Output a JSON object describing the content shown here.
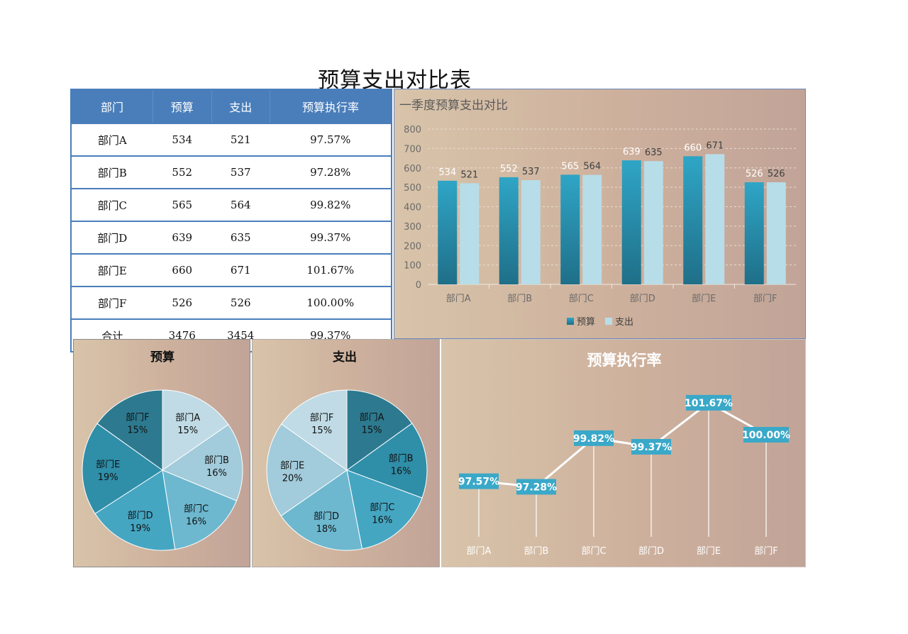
{
  "page_title": "预算支出对比表",
  "table": {
    "headers": [
      "部门",
      "预算",
      "支出",
      "预算执行率"
    ],
    "rows": [
      [
        "部门A",
        "534",
        "521",
        "97.57%"
      ],
      [
        "部门B",
        "552",
        "537",
        "97.28%"
      ],
      [
        "部门C",
        "565",
        "564",
        "99.82%"
      ],
      [
        "部门D",
        "639",
        "635",
        "99.37%"
      ],
      [
        "部门E",
        "660",
        "671",
        "101.67%"
      ],
      [
        "部门F",
        "526",
        "526",
        "100.00%"
      ],
      [
        "合计",
        "3476",
        "3454",
        "99.37%"
      ]
    ]
  },
  "chart_data": [
    {
      "type": "bar",
      "title": "一季度预算支出对比",
      "categories": [
        "部门A",
        "部门B",
        "部门C",
        "部门D",
        "部门E",
        "部门F"
      ],
      "series": [
        {
          "name": "预算",
          "values": [
            534,
            552,
            565,
            639,
            660,
            526
          ],
          "color": "#2a8fae"
        },
        {
          "name": "支出",
          "values": [
            521,
            537,
            564,
            635,
            671,
            526
          ],
          "color": "#b7dde8"
        }
      ],
      "ylim": [
        0,
        800
      ],
      "yticks": [
        0,
        100,
        200,
        300,
        400,
        500,
        600,
        700,
        800
      ],
      "grid": true,
      "legend": "bottom"
    },
    {
      "type": "pie",
      "title": "预算",
      "labels": [
        "部门A",
        "部门B",
        "部门C",
        "部门D",
        "部门E",
        "部门F"
      ],
      "values": [
        534,
        552,
        565,
        639,
        660,
        526
      ],
      "percent_labels": [
        "15%",
        "16%",
        "16%",
        "19%",
        "19%",
        "15%"
      ],
      "colors": [
        "#c0dbe5",
        "#a2cbdb",
        "#6db8cf",
        "#45a6c2",
        "#2f8ea8",
        "#2d7a90"
      ]
    },
    {
      "type": "pie",
      "title": "支出",
      "labels": [
        "部门A",
        "部门B",
        "部门C",
        "部门D",
        "部门E",
        "部门F"
      ],
      "values": [
        521,
        537,
        564,
        635,
        671,
        526
      ],
      "percent_labels": [
        "15%",
        "16%",
        "16%",
        "18%",
        "20%",
        "15%"
      ],
      "colors": [
        "#2d7a90",
        "#2f8ea8",
        "#45a6c2",
        "#6db8cf",
        "#a2cbdb",
        "#c0dbe5"
      ]
    },
    {
      "type": "line",
      "title": "预算执行率",
      "categories": [
        "部门A",
        "部门B",
        "部门C",
        "部门D",
        "部门E",
        "部门F"
      ],
      "values": [
        97.57,
        97.28,
        99.82,
        99.37,
        101.67,
        100.0
      ],
      "value_labels": [
        "97.57%",
        "97.28%",
        "99.82%",
        "99.37%",
        "101.67%",
        "100.00%"
      ],
      "label_color": "#3aa8c8"
    }
  ]
}
